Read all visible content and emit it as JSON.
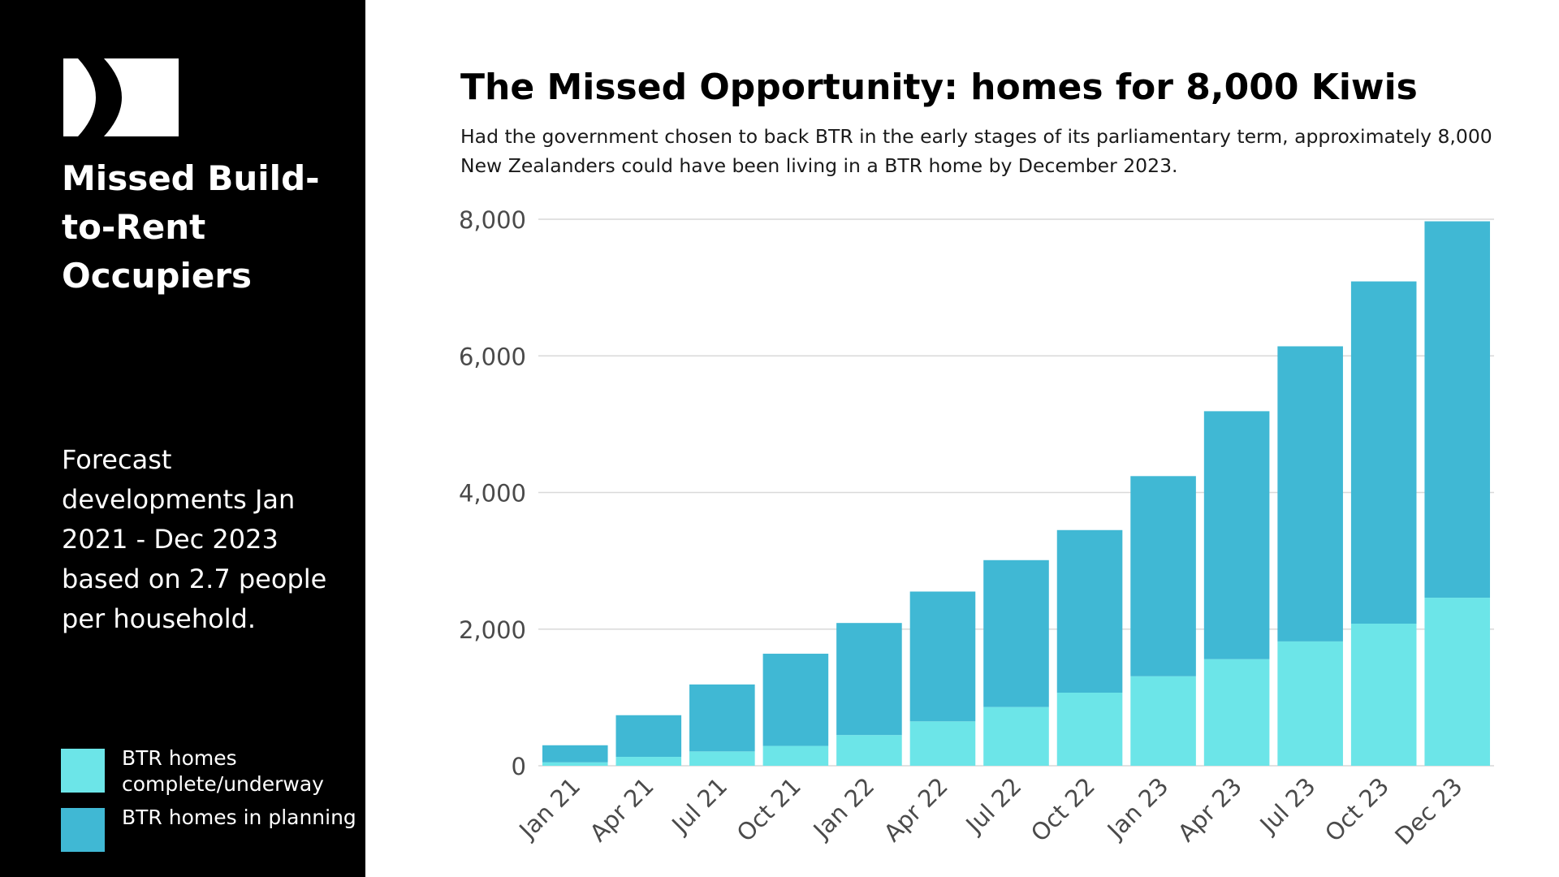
{
  "sidebar": {
    "logo": "logo-mark",
    "title": "Missed Build-to-Rent Occupiers",
    "description": "Forecast developments Jan 2021 - Dec 2023 based on 2.7 people per household.",
    "legend": [
      {
        "label": "BTR homes complete/underway",
        "color": "#6ce5e8"
      },
      {
        "label": "BTR homes in planning",
        "color": "#40b8d4"
      }
    ]
  },
  "colors": {
    "sidebar_bg": "#000000",
    "complete": "#6ce5e8",
    "planning": "#40b8d4",
    "grid": "#d9d9d9"
  },
  "chart_data": {
    "type": "bar",
    "stacked": true,
    "title": "The Missed Opportunity: homes for 8,000 Kiwis",
    "subtitle": "Had the government chosen to back BTR in the early stages of its parliamentary term, approximately 8,000 New Zealanders could have been living in a BTR home by December 2023.",
    "categories": [
      "Jan 21",
      "Apr 21",
      "Jul 21",
      "Oct 21",
      "Jan 22",
      "Apr 22",
      "Jul 22",
      "Oct 22",
      "Jan 23",
      "Apr 23",
      "Jul 23",
      "Oct 23",
      "Dec 23"
    ],
    "series": [
      {
        "name": "BTR homes complete/underway",
        "values": [
          50,
          130,
          210,
          290,
          450,
          650,
          860,
          1070,
          1310,
          1560,
          1820,
          2080,
          2460
        ]
      },
      {
        "name": "BTR homes in planning",
        "values": [
          250,
          610,
          980,
          1350,
          1640,
          1900,
          2150,
          2380,
          2930,
          3630,
          4320,
          5010,
          5510
        ]
      }
    ],
    "xlabel": "",
    "ylabel": "",
    "ylim": [
      0,
      8000
    ],
    "yticks": [
      0,
      2000,
      4000,
      6000,
      8000
    ],
    "ytick_labels": [
      "0",
      "2,000",
      "4,000",
      "6,000",
      "8,000"
    ],
    "grid": true,
    "legend_position": "left-bottom"
  }
}
